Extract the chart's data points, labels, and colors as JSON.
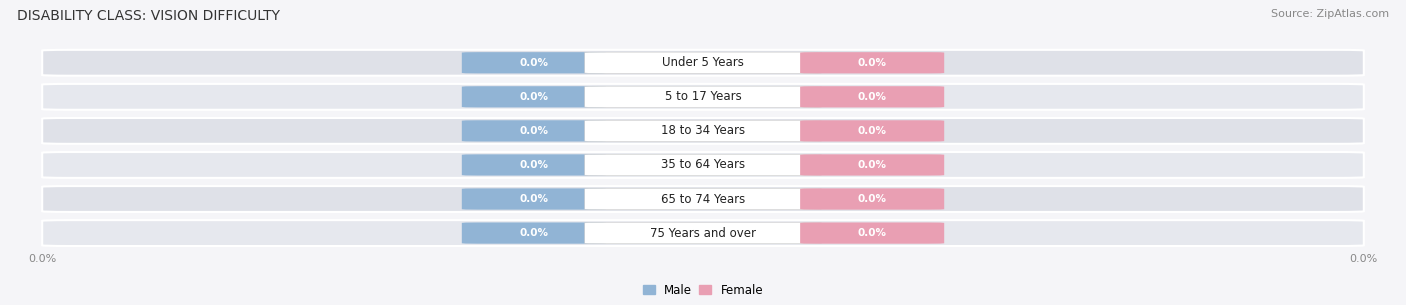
{
  "title": "DISABILITY CLASS: VISION DIFFICULTY",
  "source": "Source: ZipAtlas.com",
  "categories": [
    "Under 5 Years",
    "5 to 17 Years",
    "18 to 34 Years",
    "35 to 64 Years",
    "65 to 74 Years",
    "75 Years and over"
  ],
  "male_values": [
    0.0,
    0.0,
    0.0,
    0.0,
    0.0,
    0.0
  ],
  "female_values": [
    0.0,
    0.0,
    0.0,
    0.0,
    0.0,
    0.0
  ],
  "male_color": "#91b4d5",
  "female_color": "#e99fb3",
  "male_label": "Male",
  "female_label": "Female",
  "row_bg_color": "#e8eaf0",
  "row_bg_light": "#ebebf0",
  "page_bg": "#f5f5f8",
  "label_color": "#ffffff",
  "category_color": "#222222",
  "title_color": "#333333",
  "axis_label_color": "#888888",
  "fig_width": 14.06,
  "fig_height": 3.05,
  "title_fontsize": 10,
  "source_fontsize": 8,
  "category_fontsize": 8.5,
  "bar_label_fontsize": 7.5,
  "axis_fontsize": 8,
  "legend_fontsize": 8.5
}
